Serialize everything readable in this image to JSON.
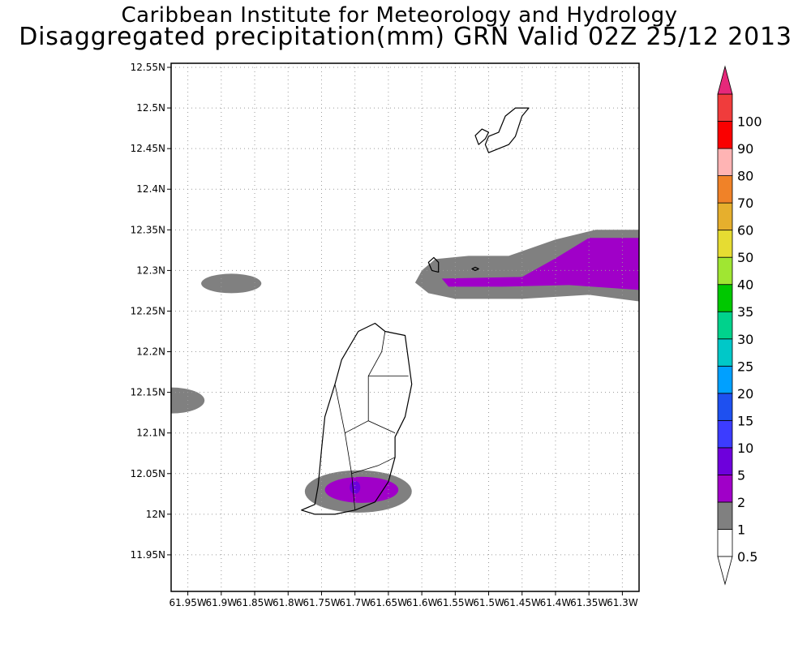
{
  "title": {
    "line1": "Caribbean Institute for Meteorology and Hydrology",
    "line2": "Disaggregated precipitation(mm) GRN Valid 02Z 25/12 2013"
  },
  "map": {
    "lon_range": [
      -61.975,
      -61.275
    ],
    "lat_range": [
      11.905,
      12.555
    ],
    "lat_ticks": [
      {
        "value": 12.55,
        "label": "12.55N"
      },
      {
        "value": 12.5,
        "label": "12.5N"
      },
      {
        "value": 12.45,
        "label": "12.45N"
      },
      {
        "value": 12.4,
        "label": "12.4N"
      },
      {
        "value": 12.35,
        "label": "12.35N"
      },
      {
        "value": 12.3,
        "label": "12.3N"
      },
      {
        "value": 12.25,
        "label": "12.25N"
      },
      {
        "value": 12.2,
        "label": "12.2N"
      },
      {
        "value": 12.15,
        "label": "12.15N"
      },
      {
        "value": 12.1,
        "label": "12.1N"
      },
      {
        "value": 12.05,
        "label": "12.05N"
      },
      {
        "value": 12.0,
        "label": "12N"
      },
      {
        "value": 11.95,
        "label": "11.95N"
      }
    ],
    "lon_ticks": [
      {
        "value": -61.95,
        "label": "61.95W"
      },
      {
        "value": -61.9,
        "label": "61.9W"
      },
      {
        "value": -61.85,
        "label": "61.85W"
      },
      {
        "value": -61.8,
        "label": "61.8W"
      },
      {
        "value": -61.75,
        "label": "61.75W"
      },
      {
        "value": -61.7,
        "label": "61.7W"
      },
      {
        "value": -61.65,
        "label": "61.65W"
      },
      {
        "value": -61.6,
        "label": "61.6W"
      },
      {
        "value": -61.55,
        "label": "61.55W"
      },
      {
        "value": -61.5,
        "label": "61.5W"
      },
      {
        "value": -61.45,
        "label": "61.45W"
      },
      {
        "value": -61.4,
        "label": "61.4W"
      },
      {
        "value": -61.35,
        "label": "61.35W"
      },
      {
        "value": -61.3,
        "label": "61.3W"
      }
    ],
    "grid": "dotted",
    "precip_areas": [
      {
        "name": "west-cell-west-of-grenada",
        "level": 0.5,
        "center": [
          -61.885,
          12.284
        ],
        "radii": [
          0.045,
          0.012
        ]
      },
      {
        "name": "west-edge-cell",
        "level": 0.5,
        "center": [
          -61.975,
          12.14
        ],
        "radii": [
          0.05,
          0.016
        ]
      },
      {
        "name": "south-grenada-cell-outer",
        "level": 0.5,
        "center": [
          -61.695,
          12.028
        ],
        "radii": [
          0.08,
          0.026
        ]
      },
      {
        "name": "south-grenada-cell-inner",
        "level": 1,
        "center": [
          -61.69,
          12.03
        ],
        "radii": [
          0.055,
          0.016
        ]
      },
      {
        "name": "south-grenada-cell-core",
        "level": 2,
        "center": [
          -61.7,
          12.033
        ],
        "radii": [
          0.008,
          0.008
        ]
      }
    ],
    "precip_band": {
      "outer": {
        "level": 0.5,
        "points": [
          [
            -61.6,
            12.3
          ],
          [
            -61.58,
            12.314
          ],
          [
            -61.53,
            12.318
          ],
          [
            -61.47,
            12.318
          ],
          [
            -61.4,
            12.338
          ],
          [
            -61.34,
            12.35
          ],
          [
            -61.275,
            12.35
          ],
          [
            -61.275,
            12.262
          ],
          [
            -61.35,
            12.27
          ],
          [
            -61.45,
            12.265
          ],
          [
            -61.55,
            12.265
          ],
          [
            -61.59,
            12.272
          ],
          [
            -61.61,
            12.285
          ]
        ]
      },
      "inner": {
        "level": 1,
        "points": [
          [
            -61.57,
            12.29
          ],
          [
            -61.45,
            12.292
          ],
          [
            -61.4,
            12.315
          ],
          [
            -61.35,
            12.34
          ],
          [
            -61.275,
            12.34
          ],
          [
            -61.275,
            12.276
          ],
          [
            -61.38,
            12.282
          ],
          [
            -61.48,
            12.28
          ],
          [
            -61.56,
            12.28
          ]
        ]
      }
    },
    "coastlines": [
      {
        "name": "grenada-island",
        "points": [
          [
            -61.78,
            12.005
          ],
          [
            -61.76,
            12.012
          ],
          [
            -61.755,
            12.035
          ],
          [
            -61.75,
            12.08
          ],
          [
            -61.745,
            12.12
          ],
          [
            -61.73,
            12.16
          ],
          [
            -61.72,
            12.19
          ],
          [
            -61.695,
            12.225
          ],
          [
            -61.67,
            12.235
          ],
          [
            -61.655,
            12.225
          ],
          [
            -61.625,
            12.22
          ],
          [
            -61.62,
            12.19
          ],
          [
            -61.615,
            12.16
          ],
          [
            -61.625,
            12.12
          ],
          [
            -61.64,
            12.095
          ],
          [
            -61.64,
            12.07
          ],
          [
            -61.65,
            12.04
          ],
          [
            -61.67,
            12.015
          ],
          [
            -61.7,
            12.005
          ],
          [
            -61.73,
            12.0
          ],
          [
            -61.76,
            12.0
          ]
        ]
      },
      {
        "name": "carriacou-island",
        "points": [
          [
            -61.5,
            12.445
          ],
          [
            -61.47,
            12.455
          ],
          [
            -61.46,
            12.465
          ],
          [
            -61.45,
            12.49
          ],
          [
            -61.44,
            12.5
          ],
          [
            -61.46,
            12.5
          ],
          [
            -61.475,
            12.49
          ],
          [
            -61.485,
            12.47
          ],
          [
            -61.5,
            12.465
          ],
          [
            -61.505,
            12.455
          ]
        ]
      },
      {
        "name": "petite-martinique-island",
        "points": [
          [
            -61.515,
            12.455
          ],
          [
            -61.505,
            12.462
          ],
          [
            -61.5,
            12.47
          ],
          [
            -61.51,
            12.474
          ],
          [
            -61.52,
            12.466
          ]
        ]
      },
      {
        "name": "islet-a",
        "points": [
          [
            -61.59,
            12.31
          ],
          [
            -61.585,
            12.3
          ],
          [
            -61.575,
            12.298
          ],
          [
            -61.575,
            12.31
          ],
          [
            -61.582,
            12.316
          ]
        ]
      },
      {
        "name": "islet-b",
        "points": [
          [
            -61.525,
            12.302
          ],
          [
            -61.52,
            12.3
          ],
          [
            -61.515,
            12.302
          ],
          [
            -61.52,
            12.304
          ]
        ]
      }
    ],
    "parishes": [
      {
        "name": "grenada-boundary-1",
        "points": [
          [
            -61.7,
            12.005
          ],
          [
            -61.705,
            12.05
          ],
          [
            -61.715,
            12.1
          ],
          [
            -61.73,
            12.16
          ]
        ]
      },
      {
        "name": "grenada-boundary-2",
        "points": [
          [
            -61.705,
            12.05
          ],
          [
            -61.665,
            12.06
          ],
          [
            -61.64,
            12.07
          ]
        ]
      },
      {
        "name": "grenada-boundary-3",
        "points": [
          [
            -61.715,
            12.1
          ],
          [
            -61.68,
            12.115
          ],
          [
            -61.64,
            12.1
          ]
        ]
      },
      {
        "name": "grenada-boundary-4",
        "points": [
          [
            -61.68,
            12.115
          ],
          [
            -61.68,
            12.17
          ],
          [
            -61.66,
            12.2
          ],
          [
            -61.655,
            12.225
          ]
        ]
      },
      {
        "name": "grenada-boundary-5",
        "points": [
          [
            -61.68,
            12.17
          ],
          [
            -61.62,
            12.17
          ]
        ]
      }
    ]
  },
  "legend": {
    "bins": [
      {
        "color": "#ffffff",
        "label": "0.5"
      },
      {
        "color": "#808080",
        "label": "1"
      },
      {
        "color": "#a000c8",
        "label": "2"
      },
      {
        "color": "#6e00dc",
        "label": "5"
      },
      {
        "color": "#3c3cff",
        "label": "10"
      },
      {
        "color": "#1e50f0",
        "label": "15"
      },
      {
        "color": "#00a0ff",
        "label": "20"
      },
      {
        "color": "#00c8c8",
        "label": "25"
      },
      {
        "color": "#00d28c",
        "label": "30"
      },
      {
        "color": "#00c800",
        "label": "35"
      },
      {
        "color": "#a0e632",
        "label": "40"
      },
      {
        "color": "#e6dc32",
        "label": "50"
      },
      {
        "color": "#e6af2d",
        "label": "60"
      },
      {
        "color": "#f08228",
        "label": "70"
      },
      {
        "color": "#ffb4b4",
        "label": "80"
      },
      {
        "color": "#fa0000",
        "label": "90"
      },
      {
        "color": "#f03c3c",
        "label": "100"
      }
    ],
    "top_arrow_color": "#e6287a",
    "bottom_arrow_color": "#ffffff",
    "level_colors": {
      "0.5": "#808080",
      "1": "#a000c8",
      "2": "#6e00dc"
    }
  }
}
